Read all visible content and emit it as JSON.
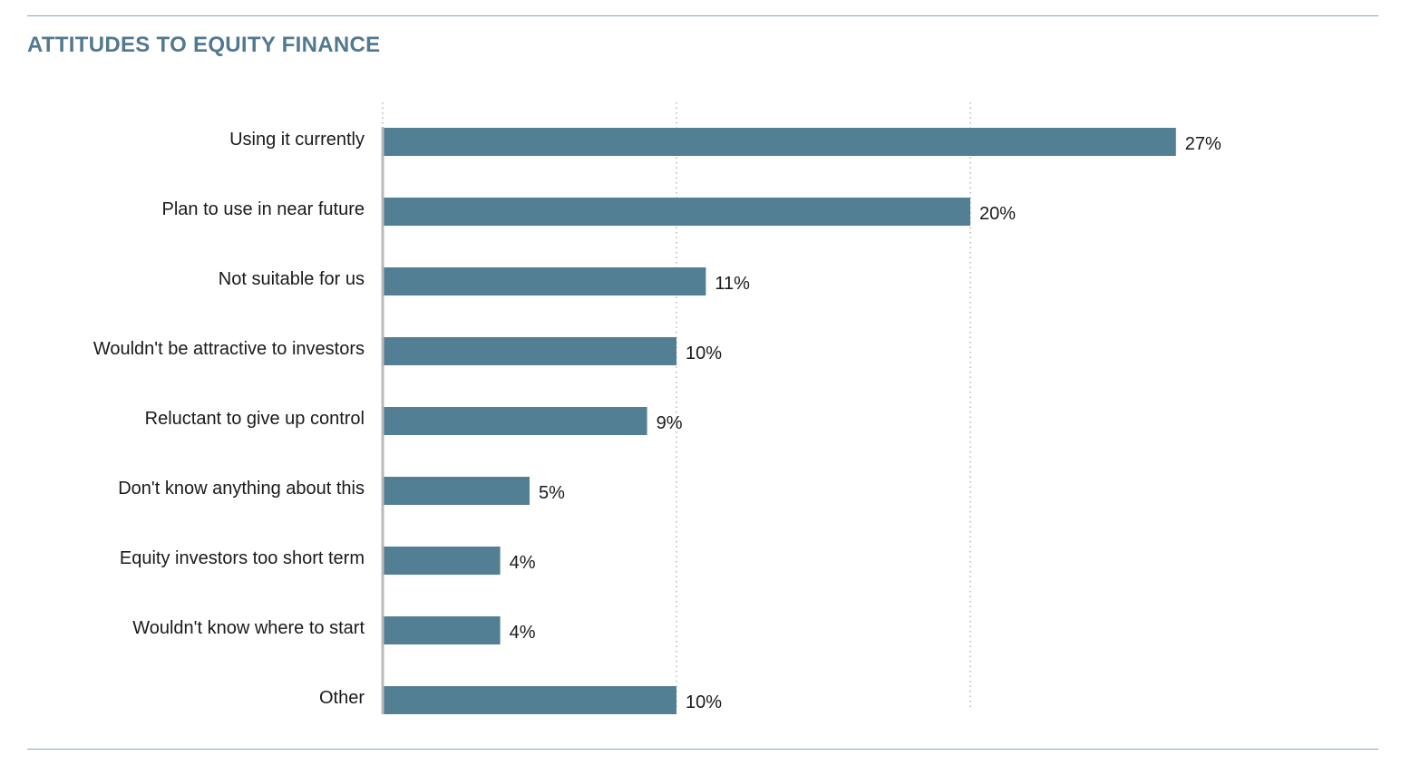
{
  "title": "ATTITUDES TO EQUITY FINANCE",
  "colors": {
    "bar": "#537f94",
    "title": "#52798f",
    "rule": "#8aa7b4",
    "grid": "#b5b5b5",
    "axis": "#b9b9b9"
  },
  "chart_data": {
    "type": "bar",
    "orientation": "horizontal",
    "title": "ATTITUDES TO EQUITY FINANCE",
    "categories": [
      "Using it currently",
      "Plan to use in near future",
      "Not suitable for us",
      "Wouldn't be attractive to investors",
      "Reluctant to give up control",
      "Don't know anything about this",
      "Equity investors too short term",
      "Wouldn't know where to start",
      "Other"
    ],
    "values": [
      27,
      20,
      11,
      10,
      9,
      5,
      4,
      4,
      10
    ],
    "value_labels": [
      "27%",
      "20%",
      "11%",
      "10%",
      "9%",
      "5%",
      "4%",
      "4%",
      "10%"
    ],
    "unit": "%",
    "xlim": [
      0,
      30
    ],
    "gridlines": [
      0,
      10,
      20
    ],
    "grid": true,
    "legend": "none"
  }
}
